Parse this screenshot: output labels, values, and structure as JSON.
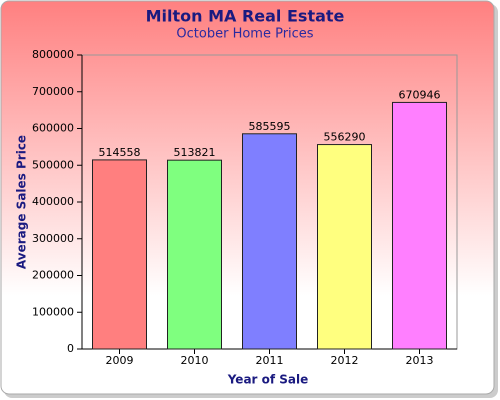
{
  "chart_data": {
    "type": "bar",
    "title": "Milton MA Real Estate",
    "subtitle": "October Home Prices",
    "x_label": "Year of Sale",
    "y_label": "Average Sales Price",
    "categories": [
      "2009",
      "2010",
      "2011",
      "2012",
      "2013"
    ],
    "values": [
      514558,
      513821,
      585595,
      556290,
      670946
    ],
    "colors": [
      "#ff7f7f",
      "#7fff7f",
      "#7f7fff",
      "#ffff7f",
      "#ff7fff"
    ],
    "ylim": [
      0,
      800000
    ],
    "yticks": [
      0,
      100000,
      200000,
      300000,
      400000,
      500000,
      600000,
      700000,
      800000
    ],
    "grid": false
  }
}
